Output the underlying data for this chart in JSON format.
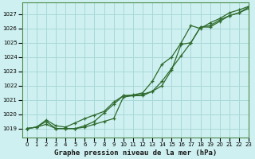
{
  "xlabel": "Graphe pression niveau de la mer (hPa)",
  "background_color": "#cff0f0",
  "grid_color": "#a8d8d8",
  "line_color": "#2d6a2d",
  "xlim": [
    -0.5,
    23
  ],
  "ylim": [
    1018.4,
    1027.8
  ],
  "yticks": [
    1019,
    1020,
    1021,
    1022,
    1023,
    1024,
    1025,
    1026,
    1027
  ],
  "xticks": [
    0,
    1,
    2,
    3,
    4,
    5,
    6,
    7,
    8,
    9,
    10,
    11,
    12,
    13,
    14,
    15,
    16,
    17,
    18,
    19,
    20,
    21,
    22,
    23
  ],
  "series1_x": [
    0,
    1,
    2,
    3,
    4,
    5,
    6,
    7,
    8,
    9,
    10,
    11,
    12,
    13,
    14,
    15,
    16,
    17,
    18,
    19,
    20,
    21,
    22,
    23
  ],
  "series1_y": [
    1019.0,
    1019.1,
    1019.3,
    1019.0,
    1019.0,
    1019.0,
    1019.1,
    1019.3,
    1019.5,
    1019.7,
    1021.2,
    1021.3,
    1021.4,
    1021.6,
    1022.0,
    1023.1,
    1024.9,
    1025.0,
    1026.1,
    1026.2,
    1026.6,
    1026.9,
    1027.1,
    1027.4
  ],
  "series2_x": [
    0,
    1,
    2,
    3,
    4,
    5,
    6,
    7,
    8,
    9,
    10,
    11,
    12,
    13,
    14,
    15,
    16,
    17,
    18,
    19,
    20,
    21,
    22,
    23
  ],
  "series2_y": [
    1019.0,
    1019.1,
    1019.5,
    1019.0,
    1019.0,
    1019.0,
    1019.2,
    1019.5,
    1020.1,
    1020.7,
    1021.3,
    1021.3,
    1021.3,
    1021.6,
    1022.3,
    1023.2,
    1024.1,
    1025.0,
    1026.1,
    1026.1,
    1026.5,
    1026.9,
    1027.1,
    1027.5
  ],
  "series3_x": [
    0,
    1,
    2,
    3,
    4,
    5,
    6,
    7,
    8,
    9,
    10,
    11,
    12,
    13,
    14,
    15,
    16,
    17,
    18,
    19,
    20,
    21,
    22,
    23
  ],
  "series3_y": [
    1019.0,
    1019.1,
    1019.6,
    1019.2,
    1019.1,
    1019.4,
    1019.7,
    1019.95,
    1020.2,
    1020.85,
    1021.3,
    1021.35,
    1021.5,
    1022.3,
    1023.5,
    1024.0,
    1025.0,
    1026.2,
    1026.0,
    1026.4,
    1026.7,
    1027.1,
    1027.3,
    1027.55
  ]
}
